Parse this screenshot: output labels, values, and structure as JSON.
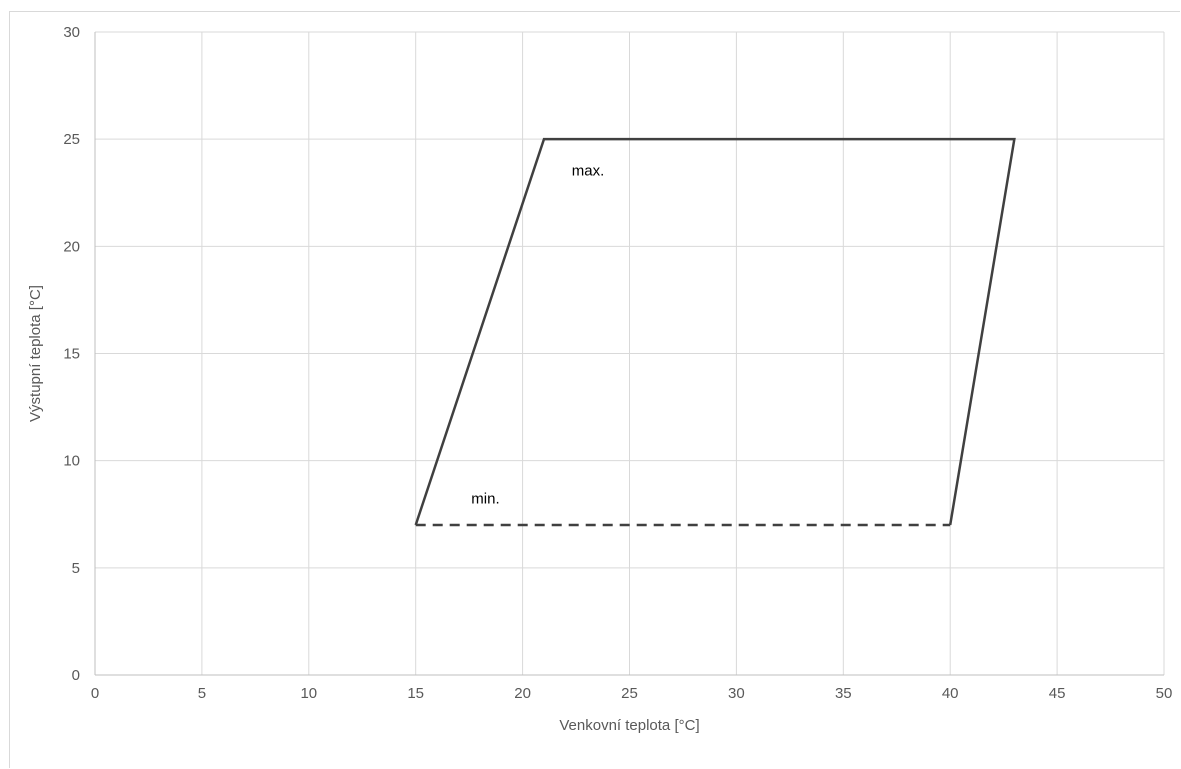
{
  "chart_data": {
    "type": "line",
    "title": "",
    "xlabel": "Venkovní teplota [°C]",
    "ylabel": "Výstupní teplota [°C]",
    "xlim": [
      0,
      50
    ],
    "ylim": [
      0,
      30
    ],
    "xticks": [
      0,
      5,
      10,
      15,
      20,
      25,
      30,
      35,
      40,
      45,
      50
    ],
    "yticks": [
      0,
      5,
      10,
      15,
      20,
      25,
      30
    ],
    "grid": true,
    "series": [
      {
        "points": [
          [
            15,
            7
          ],
          [
            21,
            25
          ],
          [
            43,
            25
          ],
          [
            40,
            7
          ]
        ],
        "style": "solid",
        "color": "#404040"
      },
      {
        "points": [
          [
            15,
            7
          ],
          [
            40,
            7
          ]
        ],
        "style": "dashed",
        "color": "#404040"
      }
    ],
    "annotations": [
      {
        "text": "max.",
        "x": 22.3,
        "y": 23.3
      },
      {
        "text": "min.",
        "x": 17.6,
        "y": 8
      }
    ],
    "colors": {
      "grid": "#d9d9d9",
      "axis": "#bfbfbf",
      "text": "#595959",
      "line": "#404040"
    }
  }
}
